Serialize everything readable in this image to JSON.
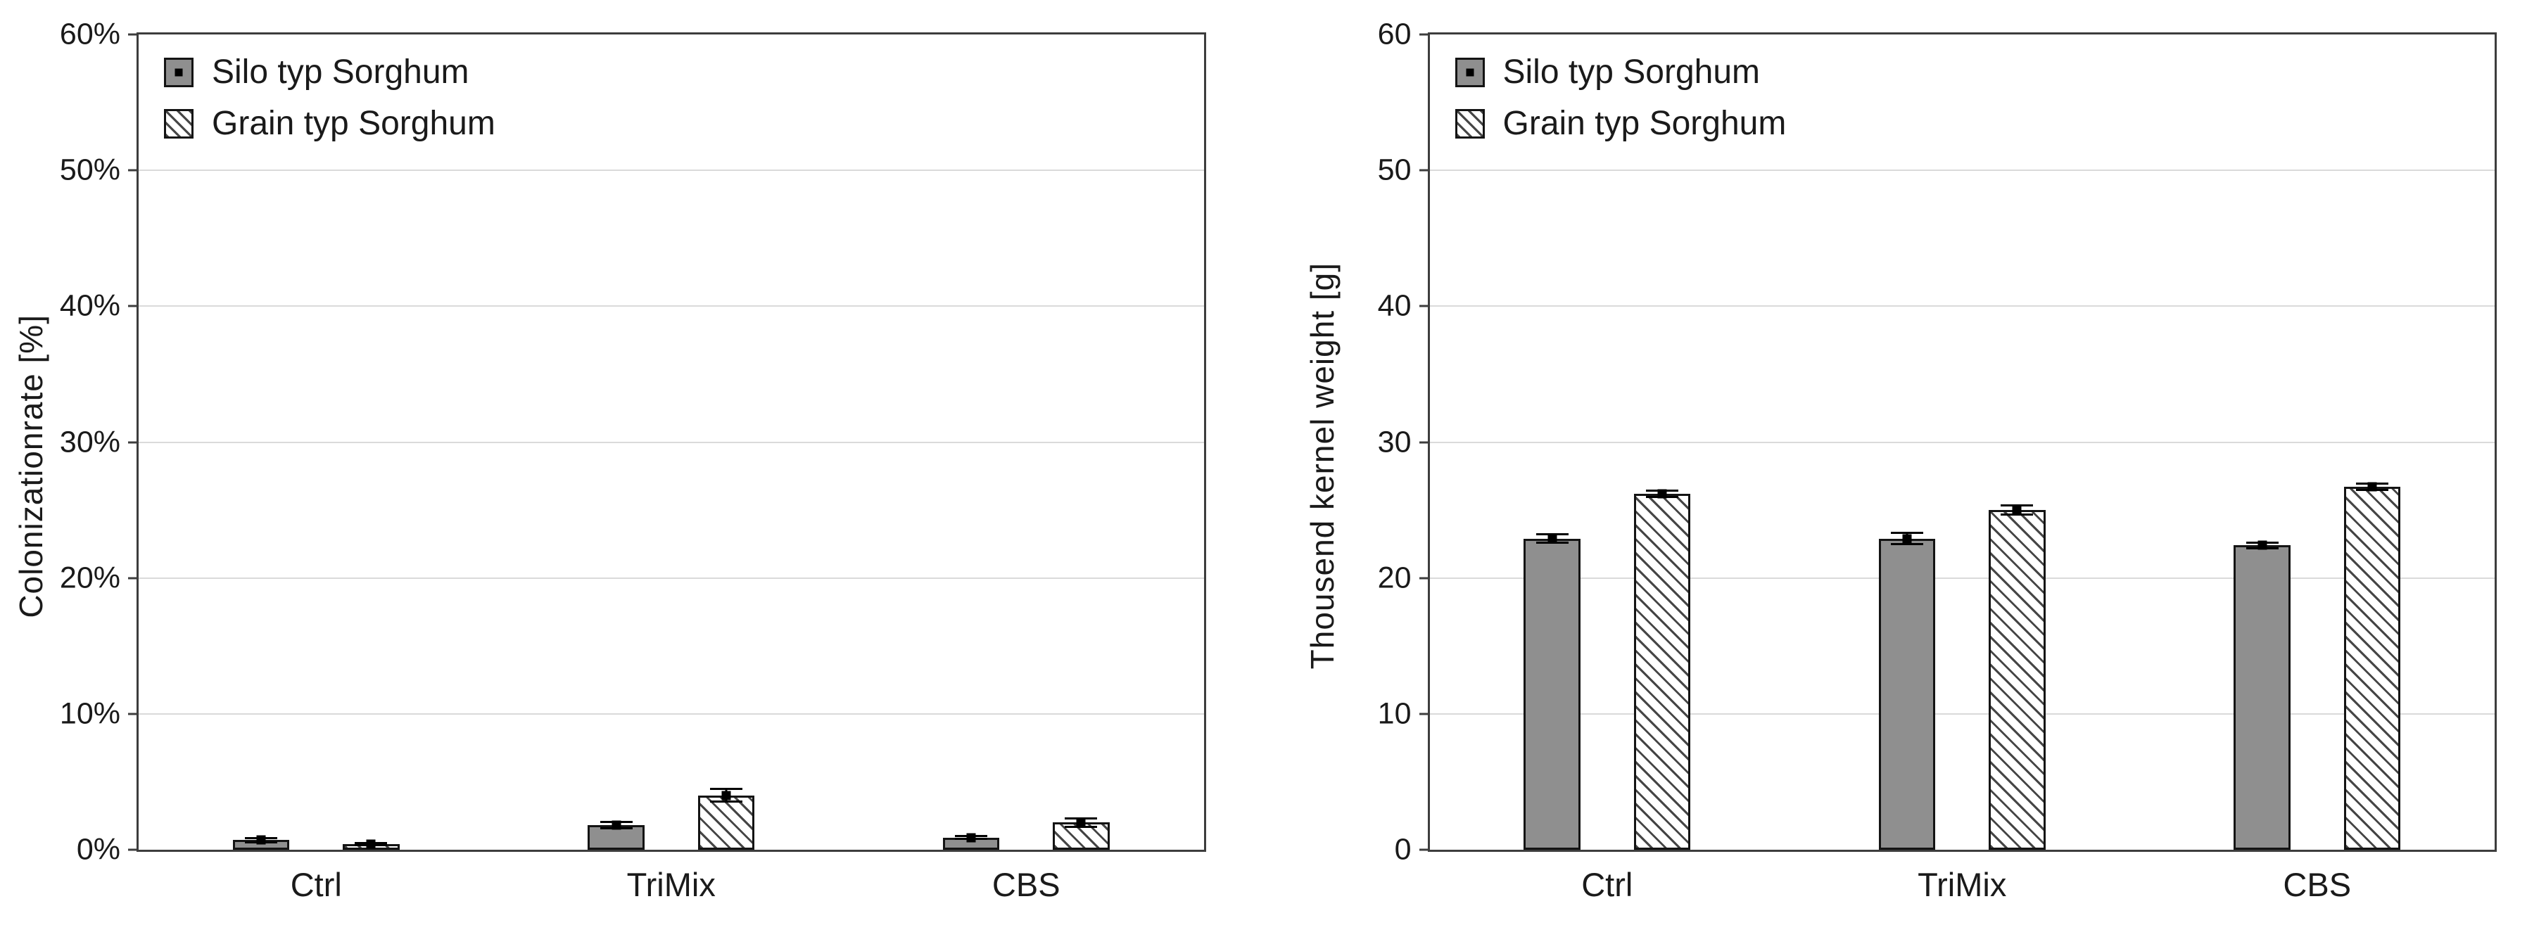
{
  "colors": {
    "bar_fill": "#8f8f8f",
    "bar_border": "#141414",
    "hatch_line": "#454545",
    "grid_line": "#dadada",
    "frame": "#3d3d3d",
    "text": "#1a1a1a",
    "background": "#ffffff"
  },
  "chart_data": [
    {
      "type": "bar",
      "title": "",
      "xlabel": "",
      "ylabel": "Colonizationrate [%]",
      "categories": [
        "Ctrl",
        "TriMix",
        "CBS"
      ],
      "series": [
        {
          "name": "Silo typ Sorghum",
          "pattern": "solid-gray",
          "values": [
            0.7,
            1.8,
            0.9
          ],
          "errors": [
            0.25,
            0.3,
            0.2
          ]
        },
        {
          "name": "Grain typ Sorghum",
          "pattern": "diagonal-hatch",
          "values": [
            0.4,
            4.0,
            2.0
          ],
          "errors": [
            0.15,
            0.55,
            0.4
          ]
        }
      ],
      "ylim": [
        0,
        60
      ],
      "ytick_step": 10,
      "ytick_suffix": "%",
      "ytick_labels": [
        "0%",
        "10%",
        "20%",
        "30%",
        "40%",
        "50%",
        "60%"
      ],
      "grid": "horizontal",
      "legend_position": "top-left",
      "error_bars": true
    },
    {
      "type": "bar",
      "title": "",
      "xlabel": "",
      "ylabel": "Thousend kernel weight [g]",
      "categories": [
        "Ctrl",
        "TriMix",
        "CBS"
      ],
      "series": [
        {
          "name": "Silo typ Sorghum",
          "pattern": "solid-gray",
          "values": [
            22.9,
            22.9,
            22.4
          ],
          "errors": [
            0.4,
            0.5,
            0.3
          ]
        },
        {
          "name": "Grain typ Sorghum",
          "pattern": "diagonal-hatch",
          "values": [
            26.2,
            25.0,
            26.7
          ],
          "errors": [
            0.3,
            0.4,
            0.3
          ]
        }
      ],
      "ylim": [
        0,
        60
      ],
      "ytick_step": 10,
      "ytick_suffix": "",
      "ytick_labels": [
        "0",
        "10",
        "20",
        "30",
        "40",
        "50",
        "60"
      ],
      "grid": "horizontal",
      "legend_position": "top-left",
      "error_bars": true
    }
  ]
}
